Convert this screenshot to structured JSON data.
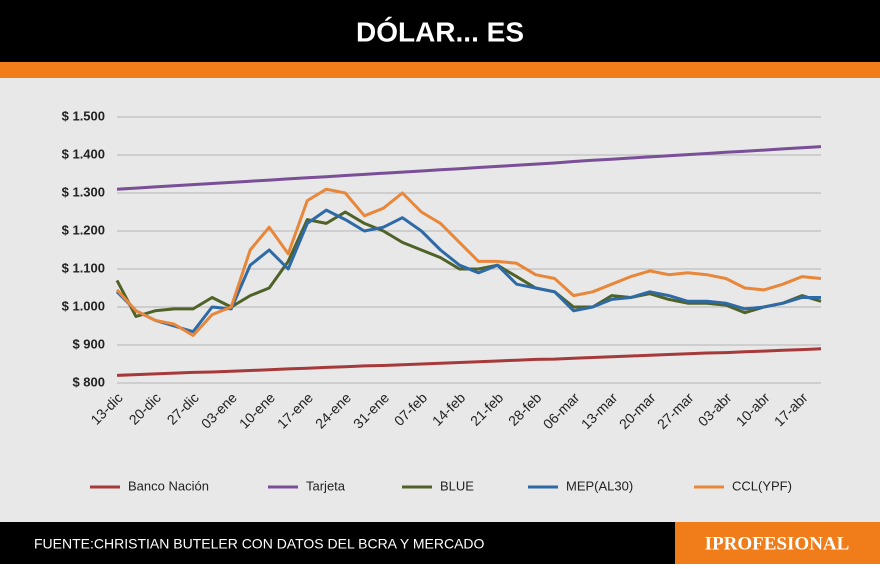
{
  "chart_data": {
    "type": "line",
    "title": "DÓLAR... ES",
    "categories": [
      "13-dic",
      null,
      "20-dic",
      null,
      "27-dic",
      null,
      "03-ene",
      null,
      "10-ene",
      null,
      "17-ene",
      null,
      "24-ene",
      null,
      "31-ene",
      null,
      "07-feb",
      null,
      "14-feb",
      null,
      "21-feb",
      null,
      "28-feb",
      null,
      "06-mar",
      null,
      "13-mar",
      null,
      "20-mar",
      null,
      "27-mar",
      null,
      "03-abr",
      null,
      "10-abr",
      null,
      "17-abr",
      null
    ],
    "series": [
      {
        "name": "Banco Nación",
        "color": "#a6393a",
        "values": [
          820,
          822,
          824,
          826,
          828,
          829,
          831,
          833,
          835,
          837,
          839,
          841,
          843,
          845,
          846,
          848,
          850,
          852,
          854,
          856,
          858,
          860,
          862,
          863,
          865,
          867,
          869,
          871,
          873,
          875,
          877,
          879,
          880,
          882,
          884,
          886,
          888,
          890
        ]
      },
      {
        "name": "Tarjeta",
        "color": "#7a4f97",
        "values": [
          1310,
          1313,
          1316,
          1319,
          1322,
          1325,
          1328,
          1331,
          1334,
          1337,
          1340,
          1343,
          1346,
          1349,
          1352,
          1355,
          1358,
          1361,
          1364,
          1367,
          1370,
          1373,
          1376,
          1379,
          1383,
          1386,
          1389,
          1392,
          1395,
          1398,
          1401,
          1404,
          1407,
          1410,
          1413,
          1416,
          1419,
          1422
        ]
      },
      {
        "name": "BLUE",
        "color": "#4f6228",
        "values": [
          1070,
          975,
          990,
          995,
          995,
          1025,
          1000,
          1030,
          1050,
          1120,
          1230,
          1220,
          1250,
          1220,
          1200,
          1170,
          1150,
          1130,
          1100,
          1100,
          1110,
          1080,
          1050,
          1040,
          1000,
          1000,
          1030,
          1025,
          1035,
          1020,
          1010,
          1010,
          1005,
          985,
          1000,
          1010,
          1030,
          1015
        ]
      },
      {
        "name": "MEP(AL30)",
        "color": "#2e6aa6",
        "values": [
          1040,
          990,
          965,
          950,
          935,
          1000,
          995,
          1110,
          1150,
          1100,
          1220,
          1255,
          1230,
          1200,
          1210,
          1235,
          1200,
          1150,
          1110,
          1090,
          1110,
          1060,
          1050,
          1040,
          990,
          1000,
          1020,
          1025,
          1040,
          1030,
          1015,
          1015,
          1010,
          995,
          1000,
          1010,
          1025,
          1025
        ]
      },
      {
        "name": "CCL(YPF)",
        "color": "#e8873a",
        "values": [
          1045,
          990,
          965,
          955,
          925,
          980,
          1000,
          1150,
          1210,
          1140,
          1280,
          1310,
          1300,
          1240,
          1260,
          1300,
          1250,
          1220,
          1170,
          1120,
          1120,
          1115,
          1085,
          1075,
          1030,
          1040,
          1060,
          1080,
          1095,
          1085,
          1090,
          1085,
          1075,
          1050,
          1045,
          1060,
          1080,
          1075
        ]
      }
    ],
    "ylim": [
      800,
      1500
    ],
    "yticks": [
      {
        "value": 800,
        "label": "$ 800"
      },
      {
        "value": 900,
        "label": "$ 900"
      },
      {
        "value": 1000,
        "label": "$ 1.000"
      },
      {
        "value": 1100,
        "label": "$ 1.100"
      },
      {
        "value": 1200,
        "label": "$ 1.200"
      },
      {
        "value": 1300,
        "label": "$ 1.300"
      },
      {
        "value": 1400,
        "label": "$ 1.400"
      },
      {
        "value": 1500,
        "label": "$ 1.500"
      }
    ],
    "grid": true
  },
  "footer": {
    "source": "FUENTE:CHRISTIAN BUTELER CON DATOS DEL BCRA Y MERCADO",
    "brand": "IPROFESIONAL"
  }
}
